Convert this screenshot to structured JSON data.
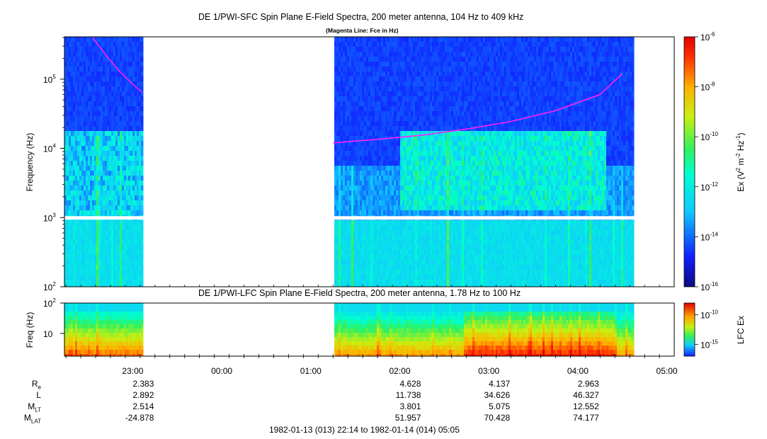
{
  "chart_data": [
    {
      "type": "heatmap",
      "title": "DE 1/PWI-SFC  Spin Plane E-Field Spectra, 200 meter antenna, 104 Hz to 409 kHz",
      "subtitle": "(Magenta Line: Fce in Hz)",
      "ylabel": "Frequency (Hz)",
      "yscale": "log",
      "ylim": [
        100,
        409000
      ],
      "yticks": [
        {
          "base": "10",
          "exp": "2"
        },
        {
          "base": "10",
          "exp": "3"
        },
        {
          "base": "10",
          "exp": "4"
        },
        {
          "base": "10",
          "exp": "5"
        }
      ],
      "colorbar": {
        "label_pre": "Ex (V",
        "label_sup1": "2",
        "label_mid": " m",
        "label_sup2": "-2",
        "label_mid2": " Hz",
        "label_sup3": "-1",
        "label_post": ")",
        "scale": "log",
        "range": [
          1e-16,
          1e-06
        ],
        "ticks": [
          {
            "base": "10",
            "exp": "-16"
          },
          {
            "base": "10",
            "exp": "-14"
          },
          {
            "base": "10",
            "exp": "-12"
          },
          {
            "base": "10",
            "exp": "-10"
          },
          {
            "base": "10",
            "exp": "-8"
          },
          {
            "base": "10",
            "exp": "-6"
          }
        ]
      },
      "data_gap": {
        "start_hours": 23.1,
        "end_hours": 25.25
      },
      "fce_line_segments": [
        {
          "x_hours": [
            22.55,
            22.7,
            22.85,
            23.0,
            23.1
          ],
          "y_hz": [
            400000,
            220000,
            130000,
            85000,
            65000
          ]
        },
        {
          "x_hours": [
            25.25,
            25.75,
            26.25,
            26.75,
            27.25,
            27.75,
            28.25,
            28.5
          ],
          "y_hz": [
            12000,
            13500,
            15500,
            19000,
            24500,
            35000,
            60000,
            120000
          ]
        }
      ]
    },
    {
      "type": "heatmap",
      "title": "DE 1/PWI-LFC  Spin Plane E-Field Spectra, 200 meter antenna, 1.78 Hz to 100 Hz",
      "ylabel": "Freq (Hz)",
      "yscale": "log",
      "ylim": [
        1.78,
        100
      ],
      "yticks": [
        {
          "base": "10",
          "exp": ""
        },
        {
          "base": "10",
          "exp": "2"
        }
      ],
      "colorbar": {
        "label": "LFC Ex",
        "scale": "log",
        "range": [
          1e-17,
          1e-08
        ],
        "ticks": [
          {
            "base": "10",
            "exp": "-15"
          },
          {
            "base": "10",
            "exp": "-10"
          }
        ]
      },
      "data_gap": {
        "start_hours": 23.1,
        "end_hours": 25.25
      }
    }
  ],
  "time_axis": {
    "start_hours": 22.233,
    "end_hours": 29.083,
    "ticks": [
      {
        "hours": 23,
        "label": "23:00"
      },
      {
        "hours": 24,
        "label": "00:00"
      },
      {
        "hours": 25,
        "label": "01:00"
      },
      {
        "hours": 26,
        "label": "02:00"
      },
      {
        "hours": 27,
        "label": "03:00"
      },
      {
        "hours": 28,
        "label": "04:00"
      },
      {
        "hours": 29,
        "label": "05:00"
      }
    ]
  },
  "orbit_table": {
    "rows": [
      {
        "label": "R",
        "sub": "e",
        "values": [
          "2.383",
          "",
          "",
          "4.628",
          "4.137",
          "2.963",
          ""
        ]
      },
      {
        "label": "L",
        "sub": "",
        "values": [
          "2.892",
          "",
          "",
          "11.738",
          "34.626",
          "46.327",
          ""
        ]
      },
      {
        "label": "M",
        "sub": "LT",
        "values": [
          "2.514",
          "",
          "",
          "3.801",
          "5.075",
          "12.552",
          ""
        ]
      },
      {
        "label": "M",
        "sub": "LAT",
        "values": [
          "-24.878",
          "",
          "",
          "51.957",
          "70.428",
          "74.177",
          ""
        ]
      }
    ]
  },
  "footer": {
    "time_range": "1982-01-13 (013) 22:14 to 1982-01-14 (014) 05:05"
  },
  "colors": {
    "fce_line": "#ff22ff",
    "gap": "#ffffff",
    "frame": "#000000"
  }
}
